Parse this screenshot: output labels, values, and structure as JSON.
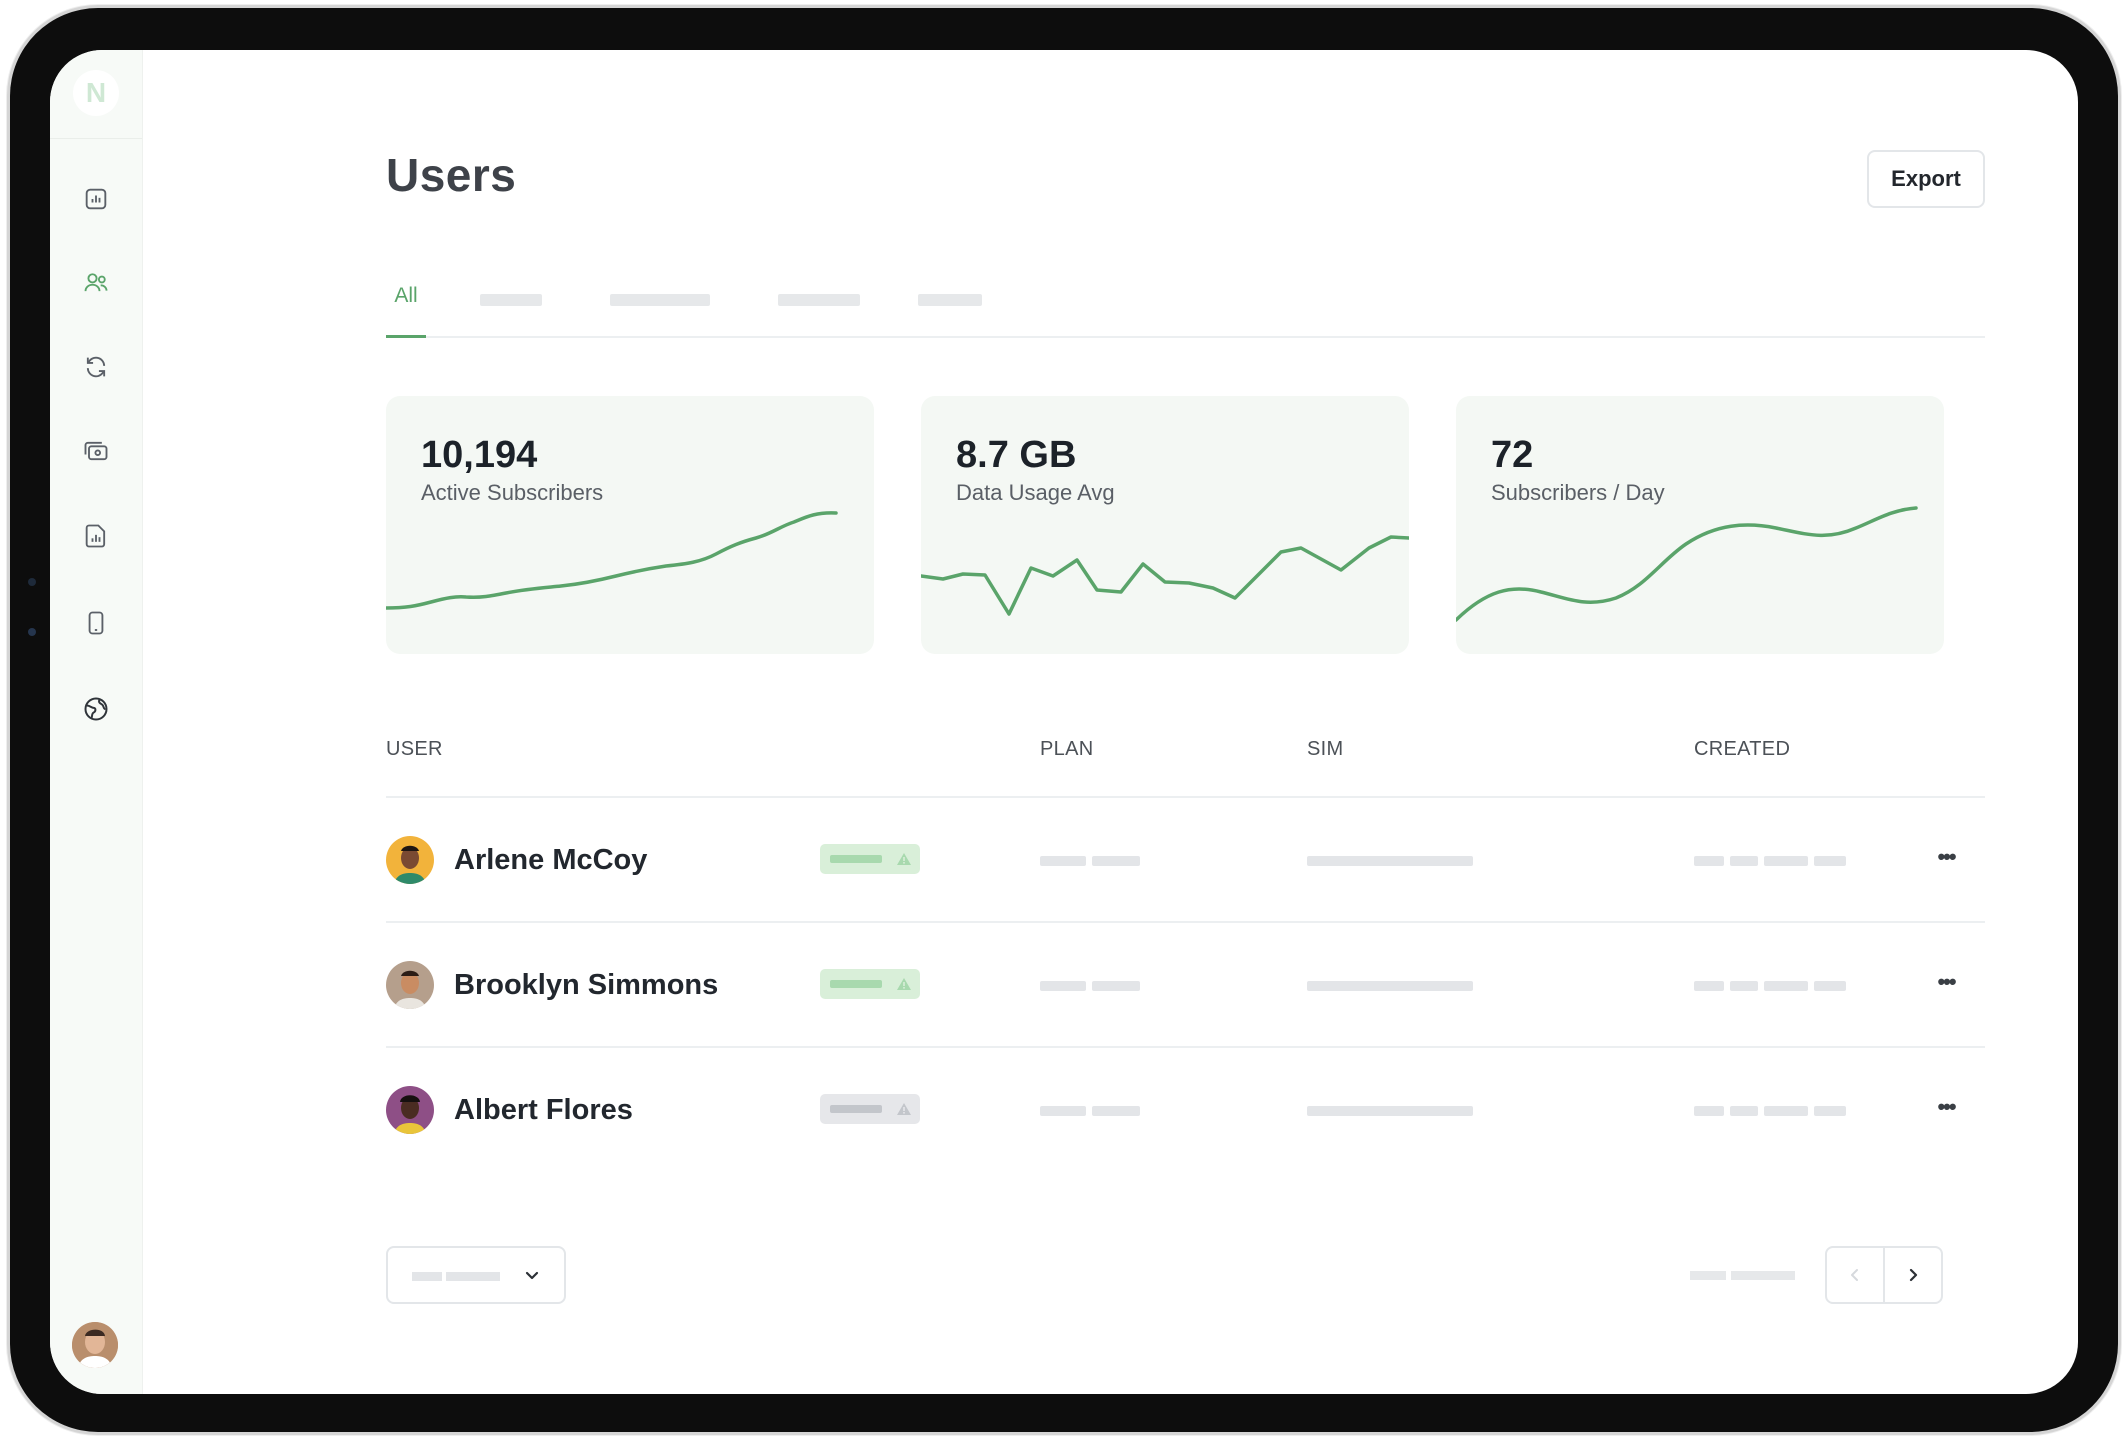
{
  "page": {
    "title": "Users",
    "export_label": "Export"
  },
  "tabs": {
    "active_label": "All"
  },
  "stats": [
    {
      "value": "10,194",
      "label": "Active Subscribers"
    },
    {
      "value": "8.7 GB",
      "label": "Data Usage Avg"
    },
    {
      "value": "72",
      "label": "Subscribers / Day"
    }
  ],
  "table": {
    "headers": {
      "user": "USER",
      "plan": "PLAN",
      "sim": "SIM",
      "created": "CREATED"
    },
    "rows": [
      {
        "name": "Arlene McCoy",
        "status": "active"
      },
      {
        "name": "Brooklyn Simmons",
        "status": "active"
      },
      {
        "name": "Albert Flores",
        "status": "inactive"
      }
    ],
    "more_label": "•••"
  },
  "sidebar": {
    "logo_letter": "N",
    "items": [
      {
        "icon": "bar-chart-icon"
      },
      {
        "icon": "users-icon",
        "active": true
      },
      {
        "icon": "refresh-icon"
      },
      {
        "icon": "cash-icon"
      },
      {
        "icon": "report-icon"
      },
      {
        "icon": "phone-icon"
      },
      {
        "icon": "globe-icon"
      }
    ]
  },
  "colors": {
    "accent": "#5aa46a",
    "card_bg": "#f4f8f4",
    "active_badge": "#d9efd9",
    "inactive_badge": "#e6e7ea"
  }
}
